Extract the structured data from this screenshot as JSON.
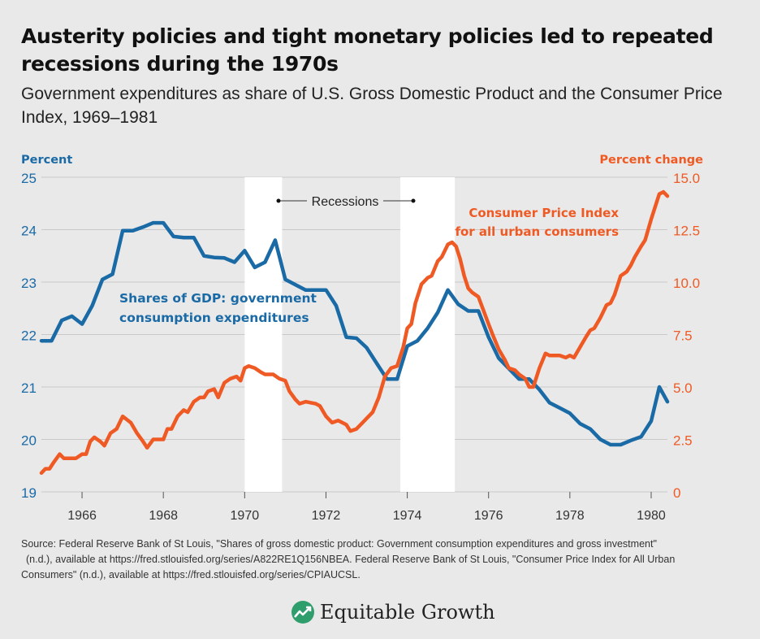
{
  "header": {
    "title": "Austerity policies and tight monetary policies led to repeated recessions during the 1970s",
    "subtitle": "Government expenditures as share of U.S. Gross Domestic Product and the Consumer Price Index, 1969–1981"
  },
  "colors": {
    "gdp": "#1a6aa6",
    "cpi": "#ef5a24",
    "recession": "#ffffff",
    "grid": "#c9c9c9",
    "background": "#e9e9e9",
    "logo": "#2e9e6c"
  },
  "chart_data": {
    "type": "line",
    "x_ticks": [
      "1966",
      "1968",
      "1970",
      "1972",
      "1974",
      "1976",
      "1978",
      "1980"
    ],
    "xlim": [
      1965.0,
      1980.4
    ],
    "left_axis": {
      "label": "Percent",
      "ticks": [
        "19",
        "20",
        "21",
        "22",
        "23",
        "24",
        "25"
      ],
      "ylim": [
        19,
        25
      ]
    },
    "right_axis": {
      "label": "Percent change",
      "ticks": [
        "0",
        "2.5",
        "5.0",
        "7.5",
        "10.0",
        "12.5",
        "15.0"
      ],
      "ylim": [
        0,
        15
      ]
    },
    "recessions": {
      "label": "Recessions",
      "periods": [
        [
          1970.0,
          1970.92
        ],
        [
          1973.83,
          1975.17
        ]
      ]
    },
    "grid": "horizontal",
    "series": [
      {
        "name": "Shares of GDP: government consumption expenditures",
        "name_lines": [
          "Shares of GDP: government",
          "consumption expenditures"
        ],
        "axis": "left",
        "points": [
          [
            1965.0,
            21.88
          ],
          [
            1965.25,
            21.88
          ],
          [
            1965.5,
            22.27
          ],
          [
            1965.75,
            22.35
          ],
          [
            1966.0,
            22.2
          ],
          [
            1966.25,
            22.55
          ],
          [
            1966.5,
            23.05
          ],
          [
            1966.75,
            23.15
          ],
          [
            1967.0,
            23.98
          ],
          [
            1967.25,
            23.98
          ],
          [
            1967.5,
            24.05
          ],
          [
            1967.75,
            24.13
          ],
          [
            1968.0,
            24.13
          ],
          [
            1968.25,
            23.87
          ],
          [
            1968.5,
            23.85
          ],
          [
            1968.75,
            23.85
          ],
          [
            1969.0,
            23.5
          ],
          [
            1969.25,
            23.47
          ],
          [
            1969.5,
            23.46
          ],
          [
            1969.75,
            23.38
          ],
          [
            1970.0,
            23.6
          ],
          [
            1970.25,
            23.28
          ],
          [
            1970.5,
            23.38
          ],
          [
            1970.75,
            23.8
          ],
          [
            1971.0,
            23.05
          ],
          [
            1971.25,
            22.95
          ],
          [
            1971.5,
            22.85
          ],
          [
            1971.75,
            22.85
          ],
          [
            1972.0,
            22.85
          ],
          [
            1972.25,
            22.55
          ],
          [
            1972.5,
            21.95
          ],
          [
            1972.75,
            21.93
          ],
          [
            1973.0,
            21.75
          ],
          [
            1973.25,
            21.45
          ],
          [
            1973.5,
            21.15
          ],
          [
            1973.75,
            21.15
          ],
          [
            1974.0,
            21.78
          ],
          [
            1974.25,
            21.88
          ],
          [
            1974.5,
            22.12
          ],
          [
            1974.75,
            22.42
          ],
          [
            1975.0,
            22.85
          ],
          [
            1975.25,
            22.58
          ],
          [
            1975.5,
            22.45
          ],
          [
            1975.75,
            22.45
          ],
          [
            1976.0,
            21.95
          ],
          [
            1976.25,
            21.55
          ],
          [
            1976.5,
            21.35
          ],
          [
            1976.75,
            21.15
          ],
          [
            1977.0,
            21.15
          ],
          [
            1977.25,
            20.95
          ],
          [
            1977.5,
            20.7
          ],
          [
            1977.75,
            20.6
          ],
          [
            1978.0,
            20.5
          ],
          [
            1978.25,
            20.3
          ],
          [
            1978.5,
            20.2
          ],
          [
            1978.75,
            20.0
          ],
          [
            1979.0,
            19.9
          ],
          [
            1979.25,
            19.9
          ],
          [
            1979.5,
            19.98
          ],
          [
            1979.75,
            20.05
          ],
          [
            1980.0,
            20.35
          ],
          [
            1980.2,
            21.0
          ],
          [
            1980.4,
            20.72
          ]
        ]
      },
      {
        "name": "Consumer Price Index for all urban consumers",
        "name_lines": [
          "Consumer Price Index",
          "for all urban consumers"
        ],
        "axis": "right",
        "points": [
          [
            1965.0,
            0.9
          ],
          [
            1965.1,
            1.1
          ],
          [
            1965.2,
            1.1
          ],
          [
            1965.3,
            1.4
          ],
          [
            1965.45,
            1.8
          ],
          [
            1965.55,
            1.6
          ],
          [
            1965.7,
            1.6
          ],
          [
            1965.85,
            1.6
          ],
          [
            1966.0,
            1.8
          ],
          [
            1966.1,
            1.8
          ],
          [
            1966.2,
            2.4
          ],
          [
            1966.3,
            2.6
          ],
          [
            1966.45,
            2.4
          ],
          [
            1966.55,
            2.2
          ],
          [
            1966.7,
            2.8
          ],
          [
            1966.85,
            3.0
          ],
          [
            1967.0,
            3.6
          ],
          [
            1967.2,
            3.3
          ],
          [
            1967.35,
            2.8
          ],
          [
            1967.5,
            2.4
          ],
          [
            1967.6,
            2.1
          ],
          [
            1967.75,
            2.5
          ],
          [
            1967.9,
            2.5
          ],
          [
            1968.0,
            2.5
          ],
          [
            1968.1,
            3.0
          ],
          [
            1968.2,
            3.0
          ],
          [
            1968.35,
            3.6
          ],
          [
            1968.5,
            3.9
          ],
          [
            1968.6,
            3.8
          ],
          [
            1968.75,
            4.3
          ],
          [
            1968.9,
            4.5
          ],
          [
            1969.0,
            4.5
          ],
          [
            1969.1,
            4.8
          ],
          [
            1969.25,
            4.9
          ],
          [
            1969.35,
            4.5
          ],
          [
            1969.5,
            5.2
          ],
          [
            1969.65,
            5.4
          ],
          [
            1969.8,
            5.5
          ],
          [
            1969.9,
            5.3
          ],
          [
            1970.0,
            5.9
          ],
          [
            1970.1,
            6.0
          ],
          [
            1970.25,
            5.9
          ],
          [
            1970.4,
            5.7
          ],
          [
            1970.5,
            5.6
          ],
          [
            1970.7,
            5.6
          ],
          [
            1970.85,
            5.4
          ],
          [
            1971.0,
            5.3
          ],
          [
            1971.1,
            4.8
          ],
          [
            1971.25,
            4.4
          ],
          [
            1971.35,
            4.2
          ],
          [
            1971.5,
            4.3
          ],
          [
            1971.75,
            4.2
          ],
          [
            1971.85,
            4.1
          ],
          [
            1972.0,
            3.6
          ],
          [
            1972.15,
            3.3
          ],
          [
            1972.3,
            3.4
          ],
          [
            1972.5,
            3.2
          ],
          [
            1972.6,
            2.9
          ],
          [
            1972.75,
            3.0
          ],
          [
            1972.9,
            3.3
          ],
          [
            1973.0,
            3.5
          ],
          [
            1973.15,
            3.8
          ],
          [
            1973.3,
            4.5
          ],
          [
            1973.45,
            5.5
          ],
          [
            1973.6,
            5.9
          ],
          [
            1973.75,
            6.0
          ],
          [
            1973.9,
            6.9
          ],
          [
            1974.0,
            7.8
          ],
          [
            1974.1,
            8.0
          ],
          [
            1974.2,
            9.0
          ],
          [
            1974.35,
            9.9
          ],
          [
            1974.5,
            10.2
          ],
          [
            1974.6,
            10.3
          ],
          [
            1974.75,
            11.0
          ],
          [
            1974.85,
            11.2
          ],
          [
            1975.0,
            11.8
          ],
          [
            1975.1,
            11.9
          ],
          [
            1975.2,
            11.7
          ],
          [
            1975.3,
            11.1
          ],
          [
            1975.4,
            10.3
          ],
          [
            1975.5,
            9.7
          ],
          [
            1975.6,
            9.5
          ],
          [
            1975.75,
            9.3
          ],
          [
            1976.0,
            8.0
          ],
          [
            1976.1,
            7.5
          ],
          [
            1976.25,
            6.8
          ],
          [
            1976.4,
            6.3
          ],
          [
            1976.5,
            5.9
          ],
          [
            1976.65,
            5.8
          ],
          [
            1976.75,
            5.6
          ],
          [
            1976.9,
            5.4
          ],
          [
            1977.0,
            5.0
          ],
          [
            1977.1,
            5.0
          ],
          [
            1977.25,
            5.9
          ],
          [
            1977.4,
            6.6
          ],
          [
            1977.5,
            6.5
          ],
          [
            1977.75,
            6.5
          ],
          [
            1977.9,
            6.4
          ],
          [
            1978.0,
            6.5
          ],
          [
            1978.1,
            6.4
          ],
          [
            1978.25,
            6.9
          ],
          [
            1978.4,
            7.4
          ],
          [
            1978.5,
            7.7
          ],
          [
            1978.6,
            7.8
          ],
          [
            1978.75,
            8.3
          ],
          [
            1978.9,
            8.9
          ],
          [
            1979.0,
            9.0
          ],
          [
            1979.1,
            9.4
          ],
          [
            1979.25,
            10.3
          ],
          [
            1979.4,
            10.5
          ],
          [
            1979.5,
            10.8
          ],
          [
            1979.6,
            11.2
          ],
          [
            1979.75,
            11.7
          ],
          [
            1979.85,
            12.0
          ],
          [
            1980.0,
            13.0
          ],
          [
            1980.1,
            13.6
          ],
          [
            1980.2,
            14.2
          ],
          [
            1980.3,
            14.3
          ],
          [
            1980.4,
            14.1
          ]
        ]
      }
    ]
  },
  "footer": {
    "source_lines": [
      "Source:  Federal Reserve Bank of St Louis, \"Shares of gross domestic product: Government consumption expenditures and gross investment\"",
      "(n.d.), available at https://fred.stlouisfed.org/series/A822RE1Q156NBEA. Federal Reserve Bank of St Louis, \"Consumer Price Index for All Urban",
      "Consumers\" (n.d.), available at https://fred.stlouisfed.org/series/CPIAUCSL."
    ],
    "brand": "Equitable Growth"
  }
}
